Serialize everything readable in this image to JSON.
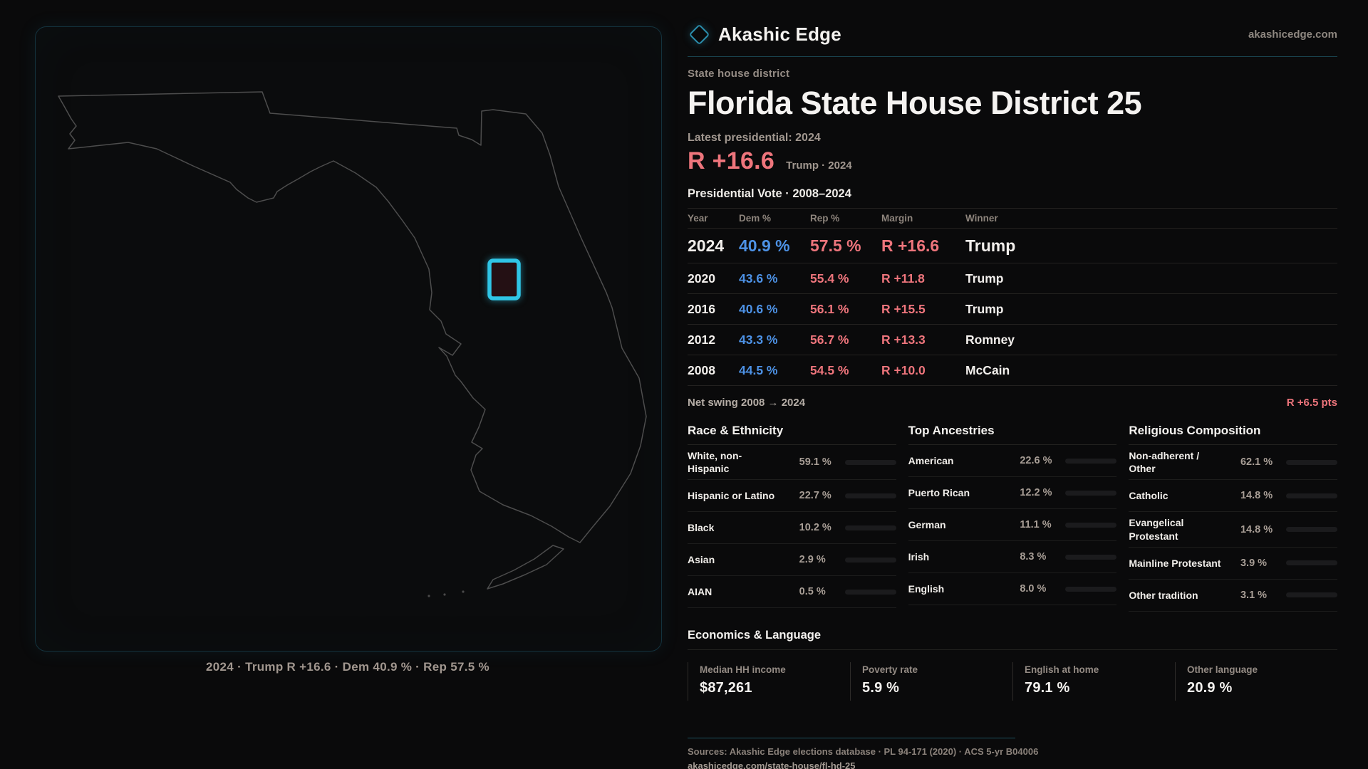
{
  "brand": {
    "name": "Akashic Edge",
    "domain": "akashicedge.com"
  },
  "page": {
    "eyebrow": "State house district",
    "title": "Florida State House District 25",
    "latest_label": "Latest presidential: 2024",
    "headline_margin": "R +16.6",
    "headline_context": "Trump · 2024",
    "table_title": "Presidential Vote · 2008–2024"
  },
  "map": {
    "caption": "2024 · Trump R +16.6 · Dem 40.9 % · Rep 57.5 %",
    "district_color": "#2fc5e6",
    "outline_color": "#4d4d4d"
  },
  "vote_table": {
    "columns": [
      "Year",
      "Dem %",
      "Rep %",
      "Margin",
      "Winner"
    ],
    "rows": [
      {
        "year": "2024",
        "dem": "40.9 %",
        "rep": "57.5 %",
        "margin": "R +16.6",
        "winner": "Trump",
        "emphasis": true
      },
      {
        "year": "2020",
        "dem": "43.6 %",
        "rep": "55.4 %",
        "margin": "R +11.8",
        "winner": "Trump",
        "emphasis": false
      },
      {
        "year": "2016",
        "dem": "40.6 %",
        "rep": "56.1 %",
        "margin": "R +15.5",
        "winner": "Trump",
        "emphasis": false
      },
      {
        "year": "2012",
        "dem": "43.3 %",
        "rep": "56.7 %",
        "margin": "R +13.3",
        "winner": "Romney",
        "emphasis": false
      },
      {
        "year": "2008",
        "dem": "44.5 %",
        "rep": "54.5 %",
        "margin": "R +10.0",
        "winner": "McCain",
        "emphasis": false
      }
    ]
  },
  "net_swing": {
    "label": "Net swing 2008 → 2024",
    "value": "R +6.5 pts"
  },
  "demographics": [
    {
      "title": "Race & Ethnicity",
      "rows": [
        {
          "label": "White, non-\nHispanic",
          "value": "59.1 %",
          "pct": 59.1,
          "color": "#93a8c2"
        },
        {
          "label": "Hispanic or Latino",
          "value": "22.7 %",
          "pct": 22.7,
          "color": "#eda127"
        },
        {
          "label": "Black",
          "value": "10.2 %",
          "pct": 10.2,
          "color": "#8f7ee8"
        },
        {
          "label": "Asian",
          "value": "2.9 %",
          "pct": 2.9,
          "color": "#2ebd7c"
        },
        {
          "label": "AIAN",
          "value": "0.5 %",
          "pct": 0.5,
          "color": "#9aa0ad"
        }
      ]
    },
    {
      "title": "Top Ancestries",
      "rows": [
        {
          "label": "American",
          "value": "22.6 %",
          "pct": 22.6,
          "color": "#93a8c2"
        },
        {
          "label": "Puerto Rican",
          "value": "12.2 %",
          "pct": 12.2,
          "color": "#eda127"
        },
        {
          "label": "German",
          "value": "11.1 %",
          "pct": 11.1,
          "color": "#9fb3cf"
        },
        {
          "label": "Irish",
          "value": "8.3 %",
          "pct": 8.3,
          "color": "#9fb3cf"
        },
        {
          "label": "English",
          "value": "8.0 %",
          "pct": 8.0,
          "color": "#9fb3cf"
        }
      ]
    },
    {
      "title": "Religious Composition",
      "rows": [
        {
          "label": "Non-adherent /\nOther",
          "value": "62.1 %",
          "pct": 62.1,
          "color": "#7d87a0"
        },
        {
          "label": "Catholic",
          "value": "14.8 %",
          "pct": 14.8,
          "color": "#e0ac24"
        },
        {
          "label": "Evangelical\nProtestant",
          "value": "14.8 %",
          "pct": 14.8,
          "color": "#e0757d"
        },
        {
          "label": "Mainline Protestant",
          "value": "3.9 %",
          "pct": 3.9,
          "color": "#4d8ee8"
        },
        {
          "label": "Other tradition",
          "value": "3.1 %",
          "pct": 3.1,
          "color": "#9aa0ad"
        }
      ]
    }
  ],
  "economics": {
    "title": "Economics & Language",
    "stats": [
      {
        "label": "Median HH income",
        "value": "$87,261"
      },
      {
        "label": "Poverty rate",
        "value": "5.9 %"
      },
      {
        "label": "English at home",
        "value": "79.1 %"
      },
      {
        "label": "Other language",
        "value": "20.9 %"
      }
    ]
  },
  "footer": {
    "sources": "Sources: Akashic Edge elections database · PL 94-171 (2020) · ACS 5-yr B04006",
    "url": "akashicedge.com/state-house/fl-hd-25"
  },
  "colors": {
    "accent_teal": "#2b8fae",
    "rep_red": "#ee757c",
    "dem_blue": "#4d92e6",
    "background": "#0a0a0b"
  }
}
